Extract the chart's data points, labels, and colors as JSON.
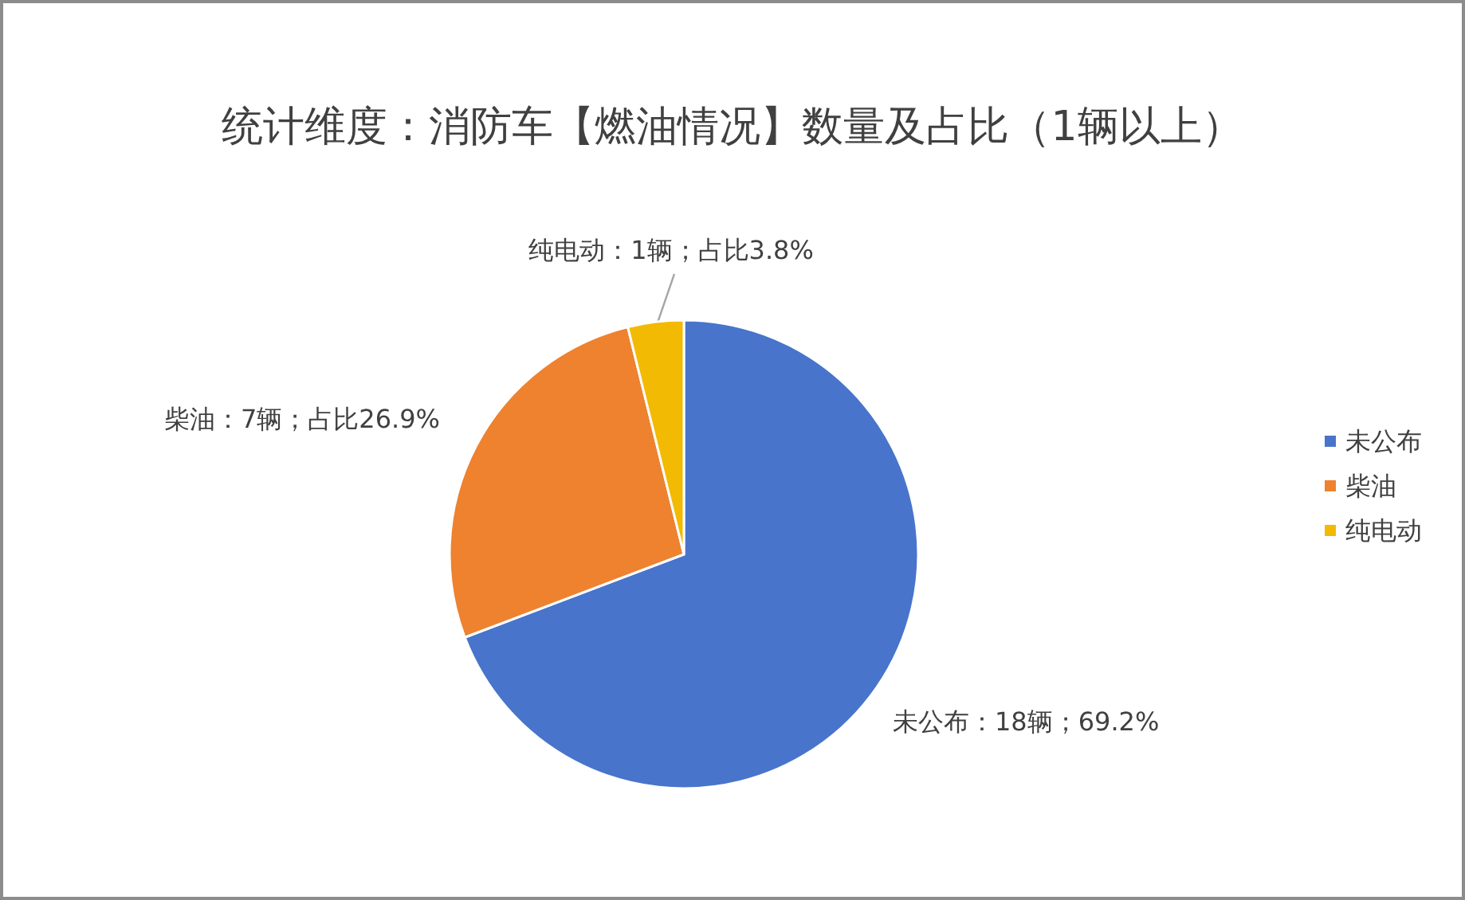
{
  "chart_data": {
    "type": "pie",
    "title": "统计维度：消防车【燃油情况】数量及占比（1辆以上）",
    "categories": [
      "未公布",
      "柴油",
      "纯电动"
    ],
    "values": [
      18,
      7,
      1
    ],
    "colors": [
      "#4874cb",
      "#ee822f",
      "#f2ba02"
    ],
    "value_labels": [
      "未公布：18辆；69.2%",
      "柴油：7辆；占比26.9%",
      "纯电动：1辆；占比3.8%"
    ],
    "legend": "right"
  }
}
